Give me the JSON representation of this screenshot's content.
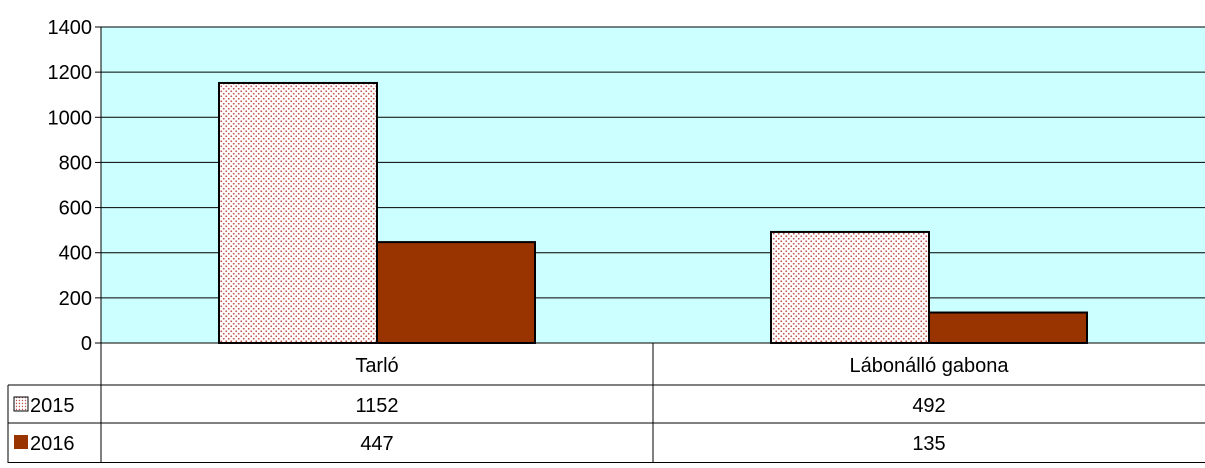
{
  "chart_data": {
    "type": "bar",
    "categories": [
      "Tarló",
      "Lábonálló gabona"
    ],
    "series": [
      {
        "name": "2015",
        "values": [
          1152,
          492
        ],
        "color": "#c0504d",
        "pattern": "dotted"
      },
      {
        "name": "2016",
        "values": [
          447,
          135
        ],
        "color": "#993300",
        "pattern": "solid"
      }
    ],
    "ylim": [
      0,
      1400
    ],
    "yticks": [
      "0",
      "200",
      "400",
      "600",
      "800",
      "1000",
      "1200",
      "1400"
    ],
    "grid": true,
    "plot_background": "#ccffff",
    "legend": "data-table",
    "data_table": true
  }
}
